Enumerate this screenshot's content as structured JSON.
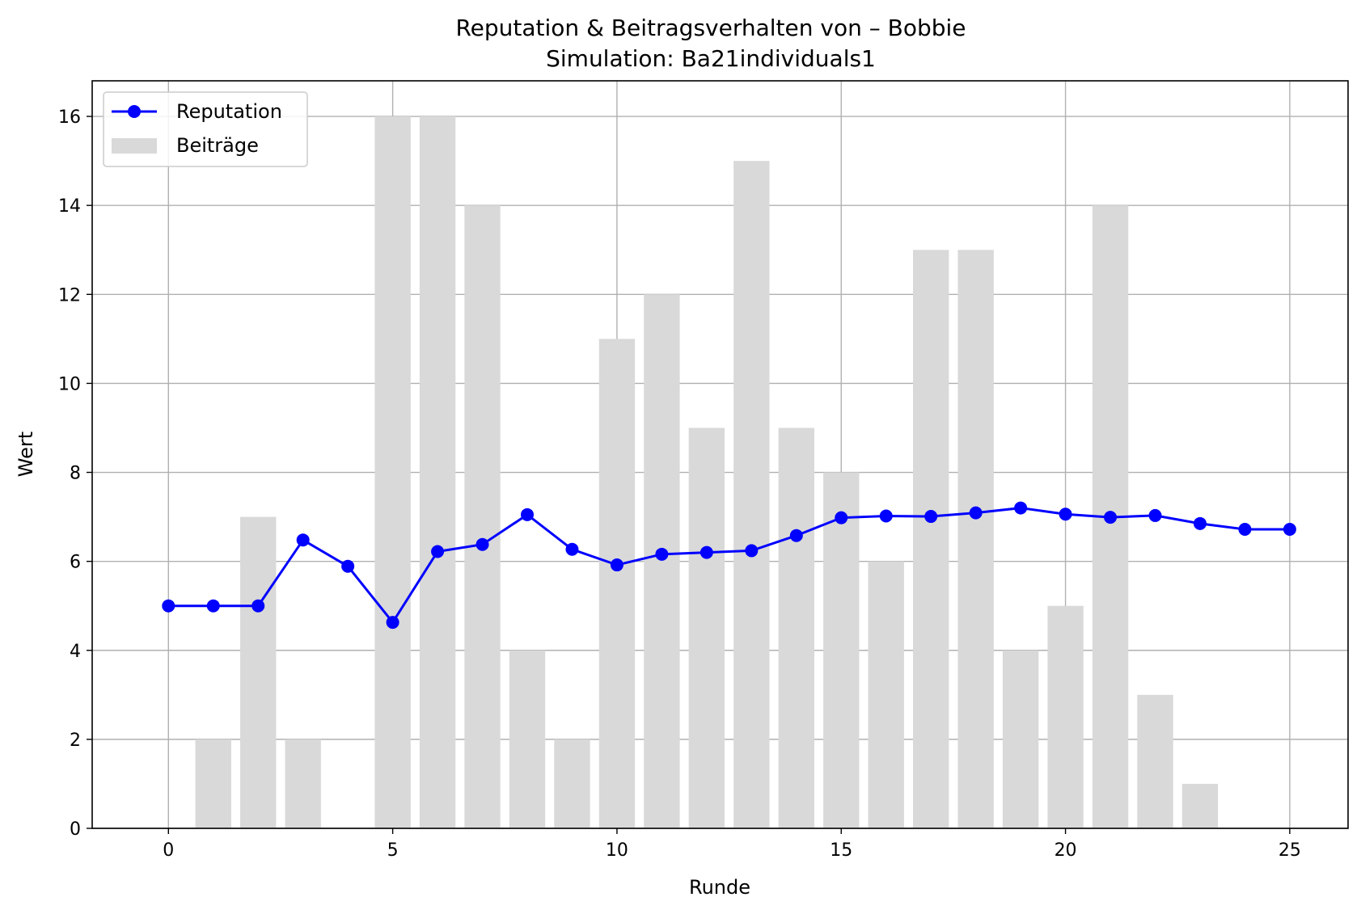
{
  "chart_data": {
    "type": "bar",
    "title": "Reputation & Beitragsverhalten von – Bobbie",
    "subtitle": "Simulation: Ba21individuals1",
    "xlabel": "Runde",
    "ylabel": "Wert",
    "xlim": [
      -1.7,
      26.3
    ],
    "ylim": [
      0,
      16.8
    ],
    "xticks": [
      0,
      5,
      10,
      15,
      20,
      25
    ],
    "yticks": [
      0,
      2,
      4,
      6,
      8,
      10,
      12,
      14,
      16
    ],
    "grid": true,
    "legend_position": "top-left",
    "bar_series": {
      "name": "Beiträge",
      "color": "#d9d9d9",
      "x": [
        0,
        1,
        2,
        3,
        4,
        5,
        6,
        7,
        8,
        9,
        10,
        11,
        12,
        13,
        14,
        15,
        16,
        17,
        18,
        19,
        20,
        21,
        22,
        23,
        24,
        25
      ],
      "values": [
        0,
        2,
        7,
        2,
        0,
        16,
        16,
        14,
        4,
        2,
        11,
        12,
        9,
        15,
        9,
        8,
        6,
        13,
        13,
        4,
        5,
        14,
        3,
        1,
        0,
        0
      ]
    },
    "line_series": {
      "name": "Reputation",
      "color": "#0000ff",
      "x": [
        0,
        1,
        2,
        3,
        4,
        5,
        6,
        7,
        8,
        9,
        10,
        11,
        12,
        13,
        14,
        15,
        16,
        17,
        18,
        19,
        20,
        21,
        22,
        23,
        24,
        25
      ],
      "values": [
        5.0,
        5.0,
        5.0,
        6.48,
        5.89,
        4.63,
        6.22,
        6.38,
        7.05,
        6.27,
        5.92,
        6.16,
        6.2,
        6.24,
        6.58,
        6.98,
        7.02,
        7.01,
        7.09,
        7.2,
        7.06,
        6.99,
        7.03,
        6.85,
        6.72,
        6.72
      ]
    }
  }
}
